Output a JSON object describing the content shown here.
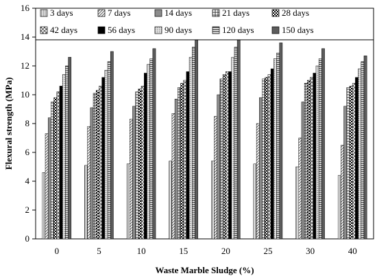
{
  "chart_data": {
    "type": "bar",
    "title": "",
    "xlabel": "Waste Marble Sludge (%)",
    "ylabel": "Flexural strength (MPa)",
    "ylim": [
      0,
      16
    ],
    "yticks": [
      0,
      2,
      4,
      6,
      8,
      10,
      12,
      14,
      16
    ],
    "grid": false,
    "legend_position": "top",
    "categories": [
      "0",
      "5",
      "10",
      "15",
      "20",
      "25",
      "30",
      "40"
    ],
    "series": [
      {
        "name": "3 days",
        "pattern": "vert-lines",
        "values": [
          4.6,
          5.1,
          5.2,
          5.4,
          5.4,
          5.2,
          5.0,
          4.4
        ]
      },
      {
        "name": "7 days",
        "pattern": "diag-lines",
        "values": [
          7.3,
          7.8,
          8.3,
          8.7,
          8.5,
          8.0,
          7.0,
          6.5
        ]
      },
      {
        "name": "14 days",
        "pattern": "solid-gray",
        "values": [
          8.4,
          9.1,
          9.2,
          9.7,
          10.0,
          9.8,
          9.5,
          9.2
        ]
      },
      {
        "name": "21 days",
        "pattern": "grid",
        "values": [
          9.5,
          10.1,
          10.2,
          10.5,
          11.1,
          11.1,
          10.8,
          10.5
        ]
      },
      {
        "name": "28 days",
        "pattern": "checker",
        "values": [
          9.8,
          10.3,
          10.4,
          10.8,
          11.4,
          11.2,
          11.0,
          10.6
        ]
      },
      {
        "name": "42 days",
        "pattern": "diag-cross",
        "values": [
          10.2,
          10.6,
          10.6,
          11.0,
          11.6,
          11.4,
          11.2,
          10.8
        ]
      },
      {
        "name": "56 days",
        "pattern": "solid-black",
        "values": [
          10.6,
          11.2,
          11.5,
          11.6,
          11.6,
          11.8,
          11.5,
          11.2
        ]
      },
      {
        "name": "90 days",
        "pattern": "dots",
        "values": [
          11.4,
          11.7,
          12.1,
          12.6,
          12.6,
          12.5,
          12.0,
          11.8
        ]
      },
      {
        "name": "120 days",
        "pattern": "horiz-lines",
        "values": [
          12.0,
          12.3,
          12.5,
          13.3,
          13.3,
          12.9,
          12.5,
          12.3
        ]
      },
      {
        "name": "150 days",
        "pattern": "solid-dark",
        "values": [
          12.6,
          13.0,
          13.2,
          13.8,
          13.8,
          13.6,
          13.2,
          12.7
        ]
      }
    ]
  }
}
